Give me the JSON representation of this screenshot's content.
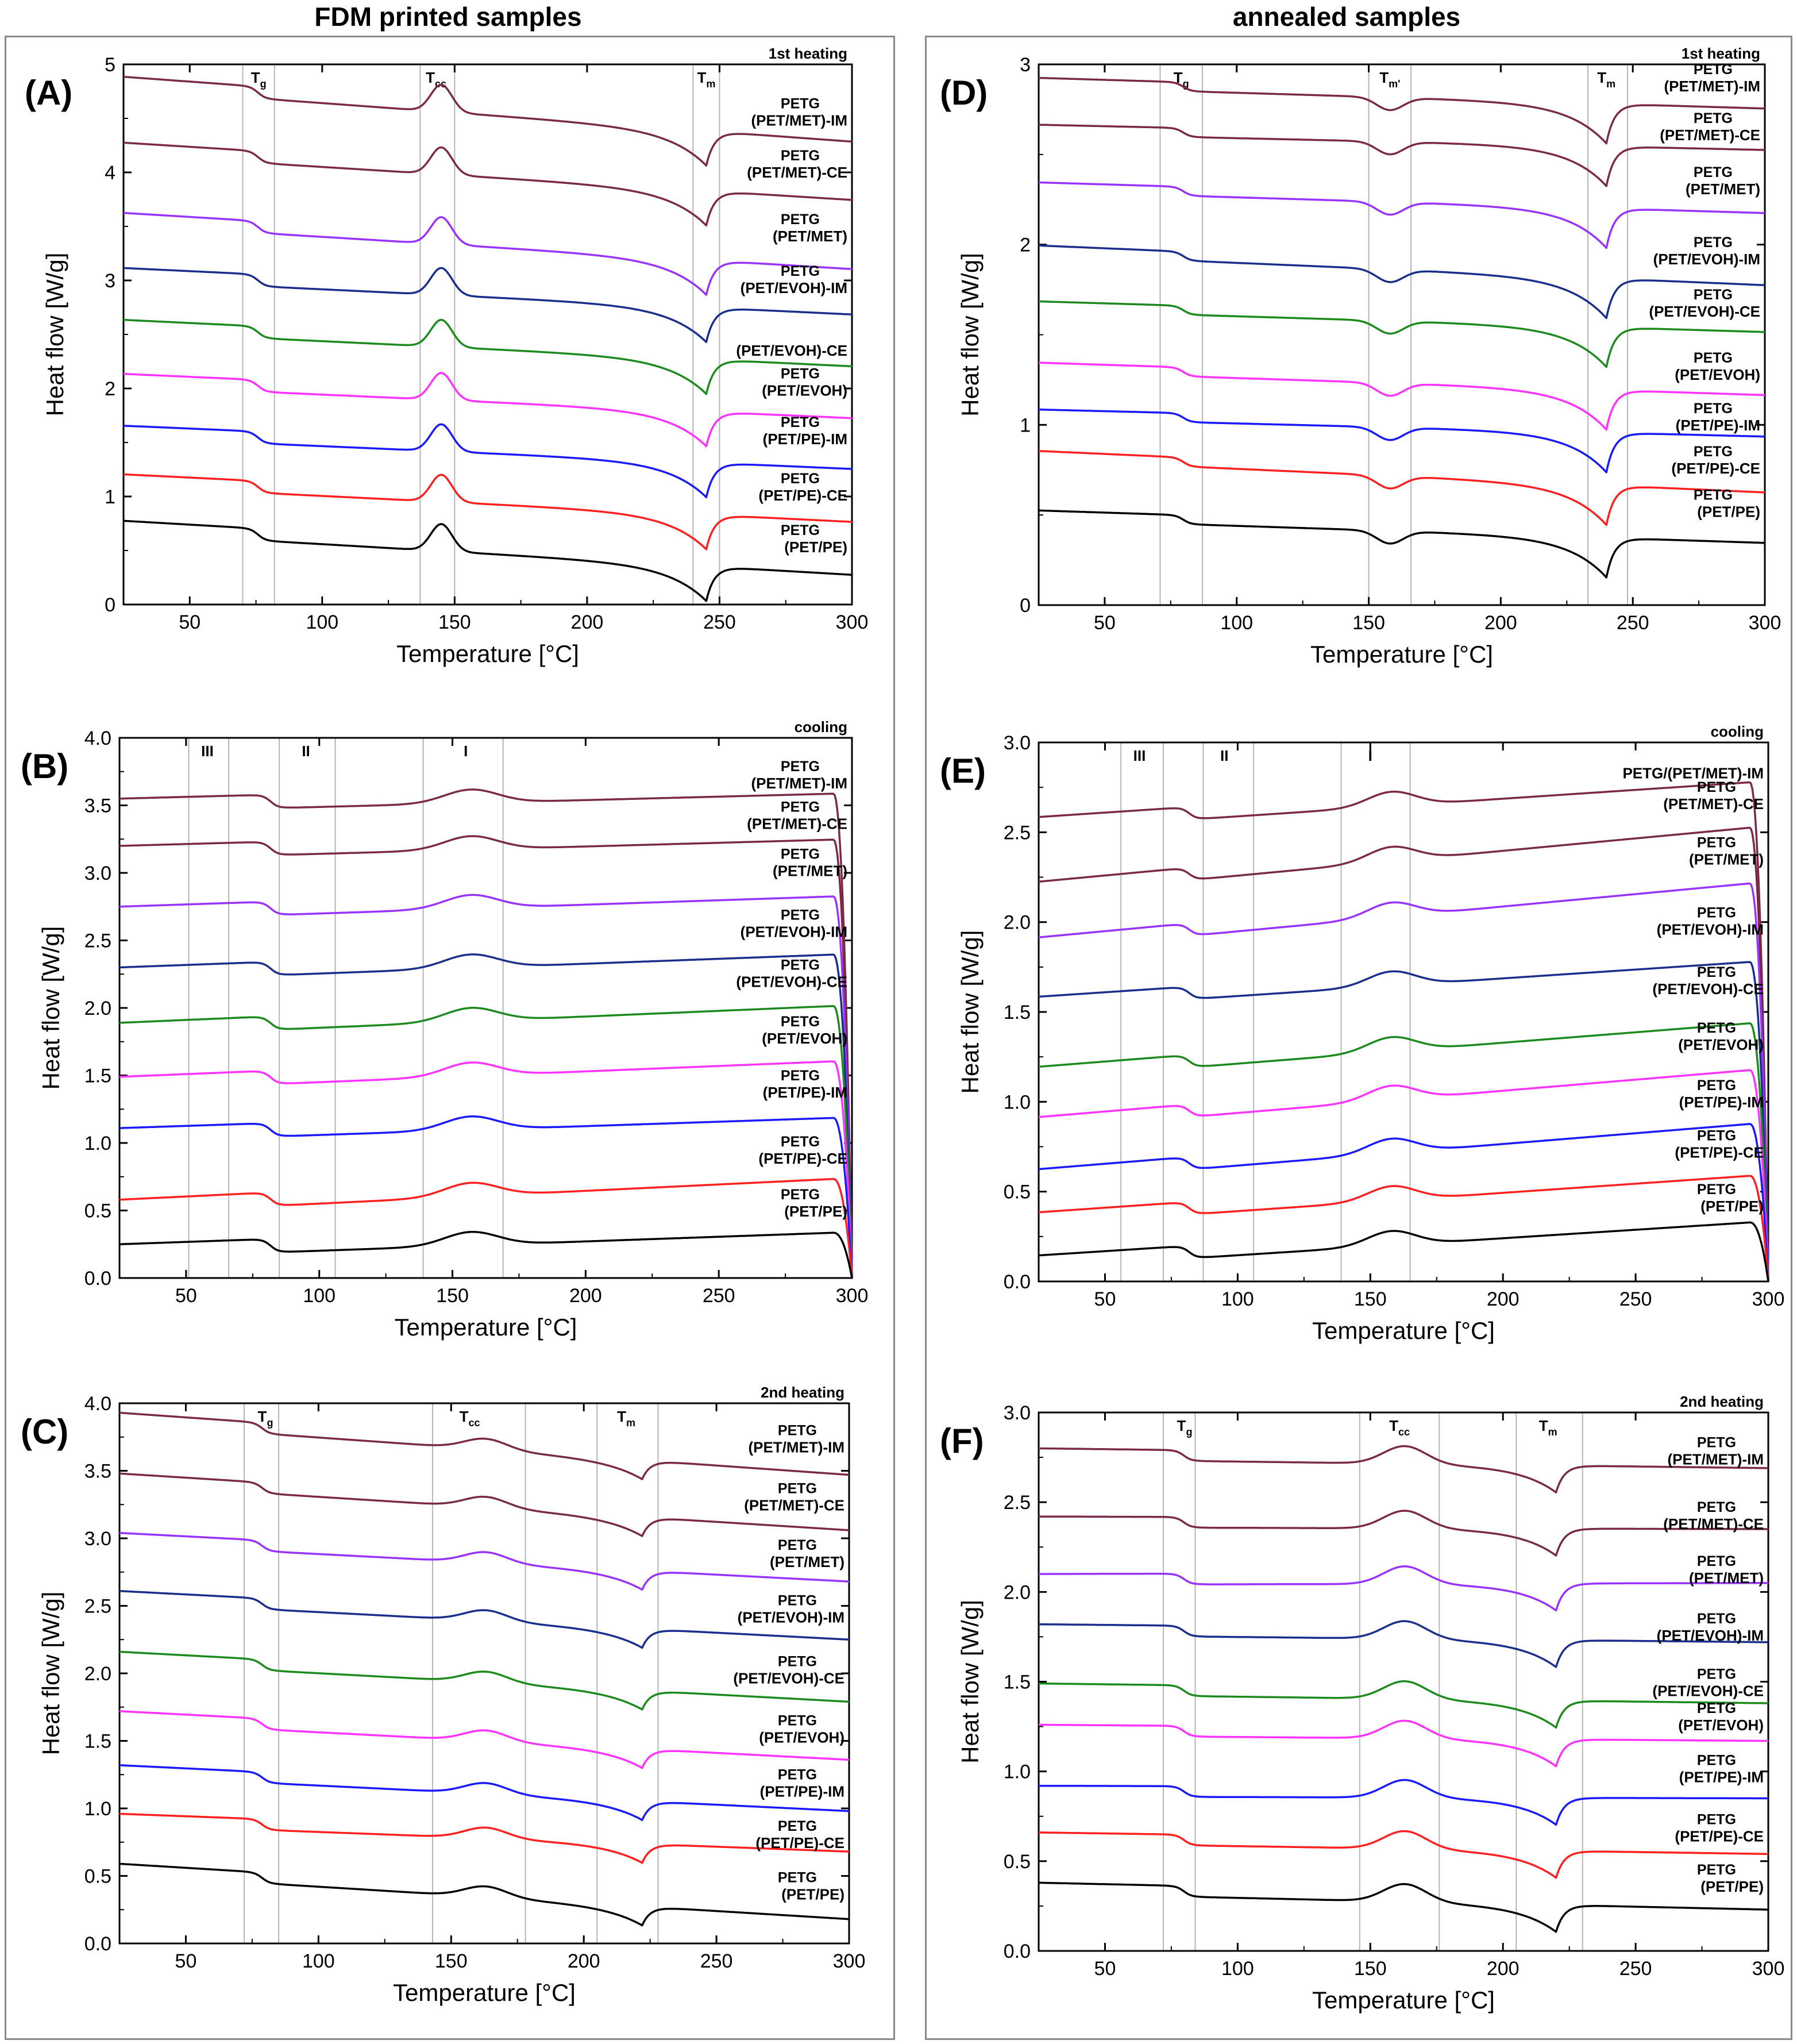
{
  "titles": {
    "left": "FDM printed samples",
    "right": "annealed samples"
  },
  "colors": {
    "(PET/MET)-IM": "#7a2a48",
    "(PET/MET)-CE": "#7a2a48",
    "(PET/MET)": "#9933ff",
    "(PET/EVOH)-IM": "#1a2f8c",
    "(PET/EVOH)-CE": "#1c8a1c",
    "(PET/EVOH)": "#ff33ff",
    "(PET/PE)-IM": "#1a1aff",
    "(PET/PE)-CE": "#ff2020",
    "(PET/PE)": "#000000"
  },
  "chart_data": [
    {
      "id": "A",
      "panel_label": "(A)",
      "type": "line",
      "mode": "heating",
      "corner_label": "1st heating",
      "xlabel": "Temperature [°C]",
      "ylabel": "Heat flow [W/g]",
      "xlim": [
        25,
        300
      ],
      "ylim": [
        0,
        5
      ],
      "xticks": [
        "50",
        "100",
        "150",
        "200",
        "250",
        "300"
      ],
      "yticks": [
        "0",
        "1",
        "2",
        "3",
        "4",
        "5"
      ],
      "vlines": [
        70,
        82,
        137,
        150,
        240,
        250
      ],
      "transitions": [
        {
          "t": "T",
          "s": "g",
          "x": 76
        },
        {
          "t": "T",
          "s": "cc",
          "x": 143
        },
        {
          "t": "T",
          "s": "m",
          "x": 245
        }
      ],
      "features": [
        {
          "type": "step",
          "x": 76,
          "h": 0.11
        },
        {
          "type": "peak",
          "x": 145,
          "h": 0.25,
          "w": 4
        },
        {
          "type": "melt",
          "x": 245,
          "h": 0.32
        }
      ],
      "series": [
        {
          "name": "(PET/MET)-IM",
          "line1": "PETG",
          "line2": "(PET/MET)-IM",
          "start": 4.83,
          "end": 4.34,
          "label_y": 4.55
        },
        {
          "name": "(PET/MET)-CE",
          "line1": "PETG",
          "line2": "(PET/MET)-CE",
          "start": 4.22,
          "end": 3.8,
          "label_y": 4.07
        },
        {
          "name": "(PET/MET)",
          "line1": "PETG",
          "line2": "(PET/MET)",
          "start": 3.57,
          "end": 3.16,
          "label_y": 3.48
        },
        {
          "name": "(PET/EVOH)-IM",
          "line1": "PETG",
          "line2": "(PET/EVOH)-IM",
          "start": 3.06,
          "end": 2.74,
          "label_y": 3.0
        },
        {
          "name": "(PET/EVOH)-CE",
          "line1": "",
          "line2": "(PET/EVOH)-CE",
          "start": 2.58,
          "end": 2.26,
          "label_y": 2.42
        },
        {
          "name": "(PET/EVOH)",
          "line1": "PETG",
          "line2": "(PET/EVOH)",
          "start": 2.08,
          "end": 1.78,
          "label_y": 2.05
        },
        {
          "name": "(PET/PE)-IM",
          "line1": "PETG",
          "line2": "(PET/PE)-IM",
          "start": 1.6,
          "end": 1.31,
          "label_y": 1.6
        },
        {
          "name": "(PET/PE)-CE",
          "line1": "PETG",
          "line2": "(PET/PE)-CE",
          "start": 1.15,
          "end": 0.82,
          "label_y": 1.08
        },
        {
          "name": "(PET/PE)",
          "line1": "PETG",
          "line2": "(PET/PE)",
          "start": 0.72,
          "end": 0.33,
          "label_y": 0.6
        }
      ]
    },
    {
      "id": "B",
      "panel_label": "(B)",
      "type": "line",
      "mode": "cooling",
      "corner_label": "cooling",
      "xlabel": "Temperature [°C]",
      "ylabel": "Heat flow [W/g]",
      "xlim": [
        25,
        300
      ],
      "ylim": [
        0,
        4
      ],
      "xticks": [
        "50",
        "100",
        "150",
        "200",
        "250",
        "300"
      ],
      "yticks": [
        "0.0",
        "0.5",
        "1.0",
        "1.5",
        "2.0",
        "2.5",
        "3.0",
        "3.5",
        "4.0"
      ],
      "vlines": [
        51,
        66,
        85,
        106,
        139,
        169
      ],
      "transitions": [
        {
          "t": "III",
          "s": "",
          "x": 58
        },
        {
          "t": "II",
          "s": "",
          "x": 95
        },
        {
          "t": "I",
          "s": "",
          "x": 155
        }
      ],
      "features": [
        {
          "type": "step",
          "x": 82,
          "h": 0.1
        },
        {
          "type": "peak",
          "x": 157,
          "h": 0.1,
          "w": 10
        }
      ],
      "series": [
        {
          "name": "(PET/MET)-IM",
          "line1": "PETG",
          "line2": "(PET/MET)-IM",
          "start": 3.5,
          "end": 3.64,
          "label_y": 3.72
        },
        {
          "name": "(PET/MET)-CE",
          "line1": "PETG",
          "line2": "(PET/MET)-CE",
          "start": 3.15,
          "end": 3.3,
          "label_y": 3.42
        },
        {
          "name": "(PET/MET)",
          "line1": "PETG",
          "line2": "(PET/MET)",
          "start": 2.7,
          "end": 2.88,
          "label_y": 3.07
        },
        {
          "name": "(PET/EVOH)-IM",
          "line1": "PETG",
          "line2": "(PET/EVOH)-IM",
          "start": 2.25,
          "end": 2.45,
          "label_y": 2.62
        },
        {
          "name": "(PET/EVOH)-CE",
          "line1": "PETG",
          "line2": "(PET/EVOH)-CE",
          "start": 1.84,
          "end": 2.07,
          "label_y": 2.25
        },
        {
          "name": "(PET/EVOH)",
          "line1": "PETG",
          "line2": "(PET/EVOH)",
          "start": 1.44,
          "end": 1.66,
          "label_y": 1.83
        },
        {
          "name": "(PET/PE)-IM",
          "line1": "PETG",
          "line2": "(PET/PE)-IM",
          "start": 1.06,
          "end": 1.24,
          "label_y": 1.43
        },
        {
          "name": "(PET/PE)-CE",
          "line1": "PETG",
          "line2": "(PET/PE)-CE",
          "start": 0.53,
          "end": 0.79,
          "label_y": 0.94
        },
        {
          "name": "(PET/PE)",
          "line1": "PETG",
          "line2": "(PET/PE)",
          "start": 0.2,
          "end": 0.39,
          "label_y": 0.55
        }
      ]
    },
    {
      "id": "C",
      "panel_label": "(C)",
      "type": "line",
      "mode": "heating",
      "corner_label": "2nd heating",
      "xlabel": "Temperature [°C]",
      "ylabel": "Heat flow [W/g]",
      "xlim": [
        25,
        300
      ],
      "ylim": [
        0,
        4
      ],
      "xticks": [
        "50",
        "100",
        "150",
        "200",
        "250",
        "300"
      ],
      "yticks": [
        "0.0",
        "0.5",
        "1.0",
        "1.5",
        "2.0",
        "2.5",
        "3.0",
        "3.5",
        "4.0"
      ],
      "vlines": [
        72,
        85,
        143,
        178,
        205,
        228
      ],
      "transitions": [
        {
          "t": "T",
          "s": "g",
          "x": 80
        },
        {
          "t": "T",
          "s": "cc",
          "x": 157
        },
        {
          "t": "T",
          "s": "m",
          "x": 216
        }
      ],
      "features": [
        {
          "type": "step",
          "x": 79,
          "h": 0.08
        },
        {
          "type": "peak",
          "x": 163,
          "h": 0.08,
          "w": 8
        },
        {
          "type": "melt",
          "x": 222,
          "h": 0.14
        }
      ],
      "series": [
        {
          "name": "(PET/MET)-IM",
          "line1": "PETG",
          "line2": "(PET/MET)-IM",
          "start": 3.89,
          "end": 3.51,
          "label_y": 3.73
        },
        {
          "name": "(PET/MET)-CE",
          "line1": "PETG",
          "line2": "(PET/MET)-CE",
          "start": 3.44,
          "end": 3.1,
          "label_y": 3.3
        },
        {
          "name": "(PET/MET)",
          "line1": "PETG",
          "line2": "(PET/MET)",
          "start": 3.0,
          "end": 2.72,
          "label_y": 2.88
        },
        {
          "name": "(PET/EVOH)-IM",
          "line1": "PETG",
          "line2": "(PET/EVOH)-IM",
          "start": 2.57,
          "end": 2.29,
          "label_y": 2.47
        },
        {
          "name": "(PET/EVOH)-CE",
          "line1": "PETG",
          "line2": "(PET/EVOH)-CE",
          "start": 2.12,
          "end": 1.83,
          "label_y": 2.02
        },
        {
          "name": "(PET/EVOH)",
          "line1": "PETG",
          "line2": "(PET/EVOH)",
          "start": 1.68,
          "end": 1.4,
          "label_y": 1.58
        },
        {
          "name": "(PET/PE)-IM",
          "line1": "PETG",
          "line2": "(PET/PE)-IM",
          "start": 1.28,
          "end": 1.02,
          "label_y": 1.18
        },
        {
          "name": "(PET/PE)-CE",
          "line1": "PETG",
          "line2": "(PET/PE)-CE",
          "start": 0.92,
          "end": 0.72,
          "label_y": 0.8
        },
        {
          "name": "(PET/PE)",
          "line1": "PETG",
          "line2": "(PET/PE)",
          "start": 0.55,
          "end": 0.22,
          "label_y": 0.42
        }
      ]
    },
    {
      "id": "D",
      "panel_label": "(D)",
      "type": "line",
      "mode": "heating",
      "corner_label": "1st heating",
      "xlabel": "Temperature [°C]",
      "ylabel": "Heat flow [W/g]",
      "xlim": [
        25,
        300
      ],
      "ylim": [
        0,
        3
      ],
      "xticks": [
        "50",
        "100",
        "150",
        "200",
        "250",
        "300"
      ],
      "yticks": [
        "0",
        "1",
        "2",
        "3"
      ],
      "vlines": [
        71,
        87,
        150,
        166,
        233,
        248
      ],
      "transitions": [
        {
          "t": "T",
          "s": "g",
          "x": 79
        },
        {
          "t": "T",
          "s": "m'",
          "x": 158
        },
        {
          "t": "T",
          "s": "m",
          "x": 240
        }
      ],
      "features": [
        {
          "type": "step",
          "x": 80,
          "h": 0.05
        },
        {
          "type": "peak",
          "x": 158,
          "h": -0.07,
          "w": 5
        },
        {
          "type": "melt",
          "x": 240,
          "h": 0.22
        }
      ],
      "series": [
        {
          "name": "(PET/MET)-IM",
          "line1": "PETG",
          "line2": "(PET/MET)-IM",
          "start": 2.9,
          "end": 2.78,
          "label_y": 2.92
        },
        {
          "name": "(PET/MET)-CE",
          "line1": "PETG",
          "line2": "(PET/MET)-CE",
          "start": 2.64,
          "end": 2.55,
          "label_y": 2.65
        },
        {
          "name": "(PET/MET)",
          "line1": "PETG",
          "line2": "(PET/MET)",
          "start": 2.32,
          "end": 2.2,
          "label_y": 2.35
        },
        {
          "name": "(PET/EVOH)-IM",
          "line1": "PETG",
          "line2": "(PET/EVOH)-IM",
          "start": 1.97,
          "end": 1.8,
          "label_y": 1.96
        },
        {
          "name": "(PET/EVOH)-CE",
          "line1": "PETG",
          "line2": "(PET/EVOH)-CE",
          "start": 1.66,
          "end": 1.54,
          "label_y": 1.67
        },
        {
          "name": "(PET/EVOH)",
          "line1": "PETG",
          "line2": "(PET/EVOH)",
          "start": 1.32,
          "end": 1.19,
          "label_y": 1.32
        },
        {
          "name": "(PET/PE)-IM",
          "line1": "PETG",
          "line2": "(PET/PE)-IM",
          "start": 1.06,
          "end": 0.96,
          "label_y": 1.04
        },
        {
          "name": "(PET/PE)-CE",
          "line1": "PETG",
          "line2": "(PET/PE)-CE",
          "start": 0.83,
          "end": 0.65,
          "label_y": 0.8
        },
        {
          "name": "(PET/PE)",
          "line1": "PETG",
          "line2": "(PET/PE)",
          "start": 0.5,
          "end": 0.37,
          "label_y": 0.56
        }
      ]
    },
    {
      "id": "E",
      "panel_label": "(E)",
      "type": "line",
      "mode": "cooling",
      "corner_label": "cooling",
      "xlabel": "Temperature [°C]",
      "ylabel": "Heat flow [W/g]",
      "xlim": [
        25,
        300
      ],
      "ylim": [
        0,
        3
      ],
      "xticks": [
        "50",
        "100",
        "150",
        "200",
        "250",
        "300"
      ],
      "yticks": [
        "0.0",
        "0.5",
        "1.0",
        "1.5",
        "2.0",
        "2.5",
        "3.0"
      ],
      "vlines": [
        56,
        72,
        87,
        106,
        139,
        165
      ],
      "transitions": [
        {
          "t": "III",
          "s": "",
          "x": 63
        },
        {
          "t": "II",
          "s": "",
          "x": 95
        },
        {
          "t": "I",
          "s": "",
          "x": 150
        }
      ],
      "features": [
        {
          "type": "step",
          "x": 82,
          "h": 0.07
        },
        {
          "type": "peak",
          "x": 158,
          "h": 0.08,
          "w": 9
        }
      ],
      "series": [
        {
          "name": "(PET/MET)-IM",
          "line1": "",
          "line2": "PETG/(PET/MET)-IM",
          "start": 2.55,
          "end": 2.82,
          "label_y": 2.87
        },
        {
          "name": "(PET/MET)-CE",
          "line1": "PETG",
          "line2": "(PET/MET)-CE",
          "start": 2.19,
          "end": 2.57,
          "label_y": 2.7
        },
        {
          "name": "(PET/MET)",
          "line1": "PETG",
          "line2": "(PET/MET)",
          "start": 1.88,
          "end": 2.26,
          "label_y": 2.39
        },
        {
          "name": "(PET/EVOH)-IM",
          "line1": "PETG",
          "line2": "(PET/EVOH)-IM",
          "start": 1.55,
          "end": 1.82,
          "label_y": 2.0
        },
        {
          "name": "(PET/EVOH)-CE",
          "line1": "PETG",
          "line2": "(PET/EVOH)-CE",
          "start": 1.16,
          "end": 1.48,
          "label_y": 1.67
        },
        {
          "name": "(PET/EVOH)",
          "line1": "PETG",
          "line2": "(PET/EVOH)",
          "start": 0.88,
          "end": 1.22,
          "label_y": 1.36
        },
        {
          "name": "(PET/PE)-IM",
          "line1": "PETG",
          "line2": "(PET/PE)-IM",
          "start": 0.59,
          "end": 0.92,
          "label_y": 1.04
        },
        {
          "name": "(PET/PE)-CE",
          "line1": "PETG",
          "line2": "(PET/PE)-CE",
          "start": 0.35,
          "end": 0.63,
          "label_y": 0.76
        },
        {
          "name": "(PET/PE)",
          "line1": "PETG",
          "line2": "(PET/PE)",
          "start": 0.11,
          "end": 0.37,
          "label_y": 0.46
        }
      ]
    },
    {
      "id": "F",
      "panel_label": "(F)",
      "type": "line",
      "mode": "heating",
      "corner_label": "2nd heating",
      "xlabel": "Temperature [°C]",
      "ylabel": "Heat flow [W/g]",
      "xlim": [
        25,
        300
      ],
      "ylim": [
        0,
        3
      ],
      "xticks": [
        "50",
        "100",
        "150",
        "200",
        "250",
        "300"
      ],
      "yticks": [
        "0.0",
        "0.5",
        "1.0",
        "1.5",
        "2.0",
        "2.5",
        "3.0"
      ],
      "vlines": [
        72,
        84,
        146,
        176,
        205,
        230
      ],
      "transitions": [
        {
          "t": "T",
          "s": "g",
          "x": 80
        },
        {
          "t": "T",
          "s": "cc",
          "x": 161
        },
        {
          "t": "T",
          "s": "m",
          "x": 217
        }
      ],
      "features": [
        {
          "type": "step",
          "x": 80,
          "h": 0.06
        },
        {
          "type": "peak",
          "x": 163,
          "h": 0.1,
          "w": 8
        },
        {
          "type": "melt",
          "x": 220,
          "h": 0.15
        }
      ],
      "series": [
        {
          "name": "(PET/MET)-IM",
          "line1": "PETG",
          "line2": "(PET/MET)-IM",
          "start": 2.77,
          "end": 2.72,
          "label_y": 2.78
        },
        {
          "name": "(PET/MET)-CE",
          "line1": "PETG",
          "line2": "(PET/MET)-CE",
          "start": 2.39,
          "end": 2.38,
          "label_y": 2.42
        },
        {
          "name": "(PET/MET)",
          "line1": "PETG",
          "line2": "(PET/MET)",
          "start": 2.07,
          "end": 2.08,
          "label_y": 2.12
        },
        {
          "name": "(PET/EVOH)-IM",
          "line1": "PETG",
          "line2": "(PET/EVOH)-IM",
          "start": 1.79,
          "end": 1.75,
          "label_y": 1.8
        },
        {
          "name": "(PET/EVOH)-CE",
          "line1": "PETG",
          "line2": "(PET/EVOH)-CE",
          "start": 1.46,
          "end": 1.41,
          "label_y": 1.49
        },
        {
          "name": "(PET/EVOH)",
          "line1": "PETG",
          "line2": "(PET/EVOH)",
          "start": 1.23,
          "end": 1.2,
          "label_y": 1.3
        },
        {
          "name": "(PET/PE)-IM",
          "line1": "PETG",
          "line2": "(PET/PE)-IM",
          "start": 0.89,
          "end": 0.88,
          "label_y": 1.01
        },
        {
          "name": "(PET/PE)-CE",
          "line1": "PETG",
          "line2": "(PET/PE)-CE",
          "start": 0.63,
          "end": 0.57,
          "label_y": 0.68
        },
        {
          "name": "(PET/PE)",
          "line1": "PETG",
          "line2": "(PET/PE)",
          "start": 0.35,
          "end": 0.26,
          "label_y": 0.4
        }
      ]
    }
  ]
}
